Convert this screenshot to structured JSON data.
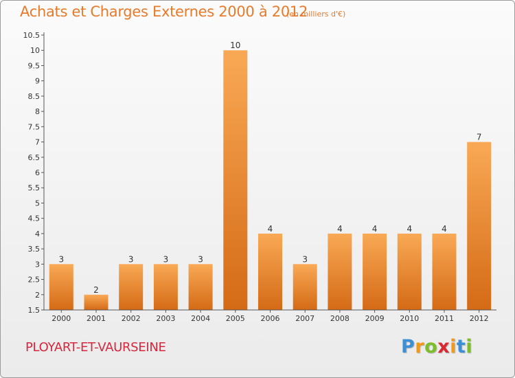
{
  "header": {
    "title": "Achats et Charges Externes 2000 à 2012",
    "subtitle": "(en milliers d'€)"
  },
  "footer": {
    "commune": "PLOYART-ET-VAURSEINE",
    "logo": {
      "letters": [
        "P",
        "r",
        "o",
        "x",
        "i",
        "t",
        "i"
      ],
      "colors": [
        "#3b8fd6",
        "#f29a16",
        "#7cbd2a",
        "#d9282f",
        "#f29a16",
        "#3b8fd6",
        "#7cbd2a"
      ]
    }
  },
  "colors": {
    "bar_light": "#f9a955",
    "bar_dark": "#d46a16",
    "text": "#333333",
    "grid": "#cfcfcf"
  },
  "chart_data": {
    "type": "bar",
    "title": "Achats et Charges Externes 2000 à 2012",
    "subtitle": "(en milliers d'€)",
    "categories": [
      "2000",
      "2001",
      "2002",
      "2003",
      "2004",
      "2005",
      "2006",
      "2007",
      "2008",
      "2009",
      "2010",
      "2011",
      "2012"
    ],
    "values": [
      3,
      2,
      3,
      3,
      3,
      10,
      4,
      3,
      4,
      4,
      4,
      4,
      7
    ],
    "data_labels": [
      "3",
      "2",
      "3",
      "3",
      "3",
      "10",
      "4",
      "3",
      "4",
      "4",
      "4",
      "4",
      "7"
    ],
    "ylim": [
      1.5,
      10.5
    ],
    "yticks": [
      "1.5",
      "2",
      "2.5",
      "3",
      "3.5",
      "4",
      "4.5",
      "5",
      "5.5",
      "6",
      "6.5",
      "7",
      "7.5",
      "8",
      "8.5",
      "9",
      "9.5",
      "10",
      "10.5"
    ],
    "grid": false
  }
}
